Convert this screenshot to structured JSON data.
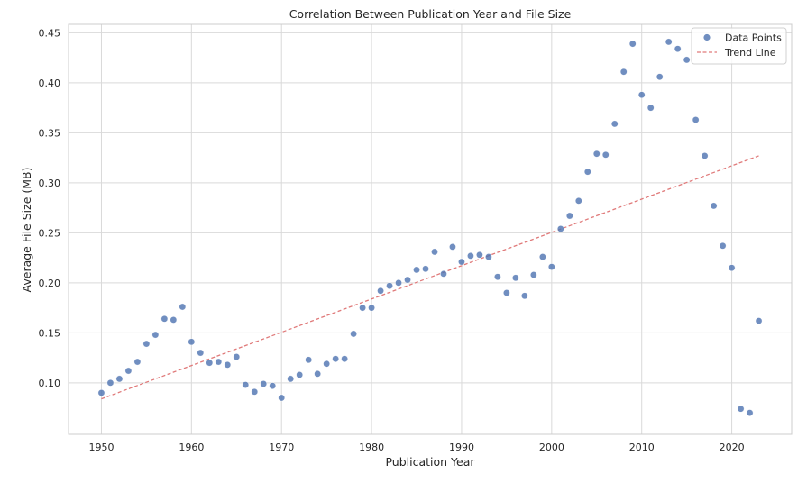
{
  "chart_data": {
    "type": "scatter",
    "title": "Correlation Between Publication Year and File Size",
    "xlabel": "Publication Year",
    "ylabel": "Average File Size (MB)",
    "xlim": [
      1946.35,
      2026.65
    ],
    "ylim": [
      0.0485,
      0.4585
    ],
    "xticks": [
      1950,
      1960,
      1970,
      1980,
      1990,
      2000,
      2010,
      2020
    ],
    "yticks": [
      0.1,
      0.15,
      0.2,
      0.25,
      0.3,
      0.35,
      0.4,
      0.45
    ],
    "ytick_labels": [
      "0.10",
      "0.15",
      "0.20",
      "0.25",
      "0.30",
      "0.35",
      "0.40",
      "0.45"
    ],
    "grid": true,
    "legend_position": "top-right",
    "series": [
      {
        "name": "Data Points",
        "kind": "scatter",
        "color": "#4c72b0",
        "x": [
          1950,
          1951,
          1952,
          1953,
          1954,
          1955,
          1956,
          1957,
          1958,
          1959,
          1960,
          1961,
          1962,
          1963,
          1964,
          1965,
          1966,
          1967,
          1968,
          1969,
          1970,
          1971,
          1972,
          1973,
          1974,
          1975,
          1976,
          1977,
          1978,
          1979,
          1980,
          1981,
          1982,
          1983,
          1984,
          1985,
          1986,
          1987,
          1988,
          1989,
          1990,
          1991,
          1992,
          1993,
          1994,
          1995,
          1996,
          1997,
          1998,
          1999,
          2000,
          2001,
          2002,
          2003,
          2004,
          2005,
          2006,
          2007,
          2008,
          2009,
          2010,
          2011,
          2012,
          2013,
          2014,
          2015,
          2016,
          2017,
          2018,
          2019,
          2020,
          2021,
          2022,
          2023
        ],
        "y": [
          0.09,
          0.1,
          0.104,
          0.112,
          0.121,
          0.139,
          0.148,
          0.164,
          0.163,
          0.176,
          0.141,
          0.13,
          0.12,
          0.121,
          0.118,
          0.126,
          0.098,
          0.091,
          0.099,
          0.097,
          0.085,
          0.104,
          0.108,
          0.123,
          0.109,
          0.119,
          0.124,
          0.124,
          0.149,
          0.175,
          0.175,
          0.192,
          0.197,
          0.2,
          0.203,
          0.213,
          0.214,
          0.231,
          0.209,
          0.236,
          0.221,
          0.227,
          0.228,
          0.226,
          0.206,
          0.19,
          0.205,
          0.187,
          0.208,
          0.226,
          0.216,
          0.254,
          0.267,
          0.282,
          0.311,
          0.329,
          0.328,
          0.359,
          0.411,
          0.439,
          0.388,
          0.375,
          0.406,
          0.441,
          0.434,
          0.423,
          0.363,
          0.327,
          0.277,
          0.237,
          0.215,
          0.074,
          0.07,
          0.162
        ]
      },
      {
        "name": "Trend Line",
        "kind": "line",
        "style": "dashed",
        "color": "#dd8452",
        "stroke": "#e07a7a",
        "x": [
          1950,
          2023
        ],
        "y": [
          0.084,
          0.327
        ]
      }
    ]
  }
}
